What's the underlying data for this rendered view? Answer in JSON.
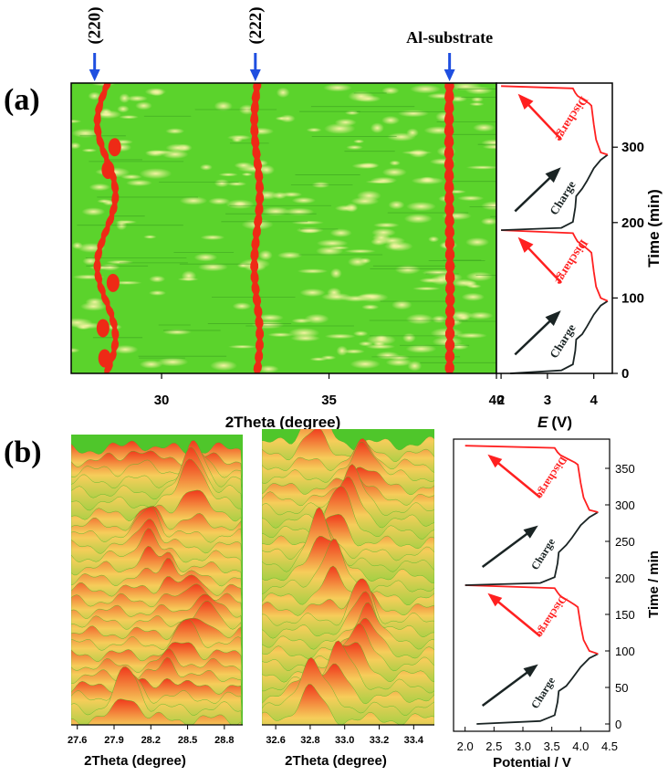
{
  "figure": {
    "panel_a_label": "(a)",
    "panel_b_label": "(b)"
  },
  "chart_data": [
    {
      "id": "a_heatmap",
      "type": "heatmap",
      "xlabel": "2Theta (degree)",
      "xlim": [
        27.3,
        40
      ],
      "x_ticks": [
        "30",
        "35",
        "40"
      ],
      "ylim": [
        0,
        385
      ],
      "peak_markers": [
        {
          "label": "(220)",
          "x": 28.0
        },
        {
          "label": "(222)",
          "x": 32.8
        },
        {
          "label": "Al-substrate",
          "x": 38.6
        }
      ],
      "colors": {
        "background": "#5bd32c",
        "peak": "#ee2a16",
        "highlight": "#e9ec7e"
      }
    },
    {
      "id": "a_potential",
      "type": "line",
      "xlabel_italic": "E",
      "xlabel_unit": "(V)",
      "ylabel": "Time (min)",
      "xlim": [
        1.9,
        4.4
      ],
      "ylim": [
        0,
        385
      ],
      "x_ticks": [
        "2",
        "3",
        "4"
      ],
      "y_ticks": [
        "0",
        "100",
        "200",
        "300"
      ],
      "annotations": {
        "charge": "Charge",
        "discharge": "Discharge"
      },
      "colors": {
        "charge": "#1a2424",
        "discharge": "#ff2020"
      },
      "series": [
        {
          "x": [
            2.2,
            3.3,
            3.55,
            3.6,
            3.62,
            3.75,
            3.85,
            4.0,
            4.15,
            4.3
          ],
          "y": [
            0,
            4,
            12,
            30,
            45,
            52,
            62,
            78,
            90,
            96
          ]
        },
        {
          "x": [
            4.3,
            4.15,
            4.05,
            4.0,
            3.95,
            3.9,
            3.8,
            3.65,
            3.6,
            3.55,
            2.0
          ],
          "y": [
            96,
            100,
            115,
            135,
            160,
            163,
            168,
            175,
            180,
            186,
            190
          ]
        },
        {
          "x": [
            2.0,
            3.3,
            3.55,
            3.6,
            3.62,
            3.75,
            3.85,
            4.0,
            4.15,
            4.3
          ],
          "y": [
            190,
            193,
            201,
            220,
            235,
            245,
            255,
            272,
            283,
            290
          ]
        },
        {
          "x": [
            4.3,
            4.15,
            4.05,
            4.0,
            3.95,
            3.9,
            3.8,
            3.65,
            3.6,
            3.55,
            2.0
          ],
          "y": [
            290,
            293,
            310,
            330,
            355,
            358,
            362,
            368,
            372,
            378,
            381
          ]
        }
      ]
    },
    {
      "id": "b_surface_220",
      "type": "area",
      "xlabel": "2Theta (degree)",
      "xlim": [
        27.55,
        28.95
      ],
      "x_ticks": [
        "27.6",
        "27.9",
        "28.2",
        "28.5",
        "28.8"
      ],
      "x_tick_values": [
        27.6,
        27.9,
        28.2,
        28.5,
        28.8
      ]
    },
    {
      "id": "b_surface_222",
      "type": "area",
      "xlabel": "2Theta (degree)",
      "xlim": [
        32.52,
        33.52
      ],
      "x_ticks": [
        "32.6",
        "32.8",
        "33.0",
        "33.2",
        "33.4"
      ],
      "x_tick_values": [
        32.6,
        32.8,
        33.0,
        33.2,
        33.4
      ]
    },
    {
      "id": "b_potential",
      "type": "line",
      "xlabel": "Potential / V",
      "ylabel": "Time / min",
      "xlim": [
        1.8,
        4.5
      ],
      "ylim": [
        -10,
        390
      ],
      "x_ticks": [
        "2.0",
        "2.5",
        "3.0",
        "3.5",
        "4.0",
        "4.5"
      ],
      "x_tick_values": [
        2.0,
        2.5,
        3.0,
        3.5,
        4.0,
        4.5
      ],
      "y_ticks": [
        "0",
        "50",
        "100",
        "150",
        "200",
        "250",
        "300",
        "350"
      ],
      "y_tick_values": [
        0,
        50,
        100,
        150,
        200,
        250,
        300,
        350
      ],
      "annotations": {
        "charge": "Charge",
        "discharge": "Discharge"
      },
      "colors": {
        "charge": "#1a2424",
        "discharge": "#ff2020"
      },
      "series": [
        {
          "x": [
            2.2,
            3.3,
            3.55,
            3.6,
            3.62,
            3.75,
            3.85,
            4.0,
            4.15,
            4.3
          ],
          "y": [
            0,
            4,
            12,
            30,
            45,
            52,
            62,
            78,
            90,
            96
          ]
        },
        {
          "x": [
            4.3,
            4.15,
            4.05,
            4.0,
            3.95,
            3.9,
            3.8,
            3.65,
            3.6,
            3.55,
            2.0
          ],
          "y": [
            96,
            100,
            115,
            135,
            160,
            163,
            168,
            175,
            180,
            186,
            190
          ]
        },
        {
          "x": [
            2.0,
            3.3,
            3.55,
            3.6,
            3.62,
            3.75,
            3.85,
            4.0,
            4.15,
            4.3
          ],
          "y": [
            190,
            193,
            201,
            220,
            235,
            245,
            255,
            272,
            283,
            290
          ]
        },
        {
          "x": [
            4.3,
            4.15,
            4.05,
            4.0,
            3.95,
            3.9,
            3.8,
            3.65,
            3.6,
            3.55,
            2.0
          ],
          "y": [
            290,
            293,
            310,
            330,
            355,
            358,
            362,
            368,
            372,
            378,
            381
          ]
        }
      ]
    }
  ]
}
